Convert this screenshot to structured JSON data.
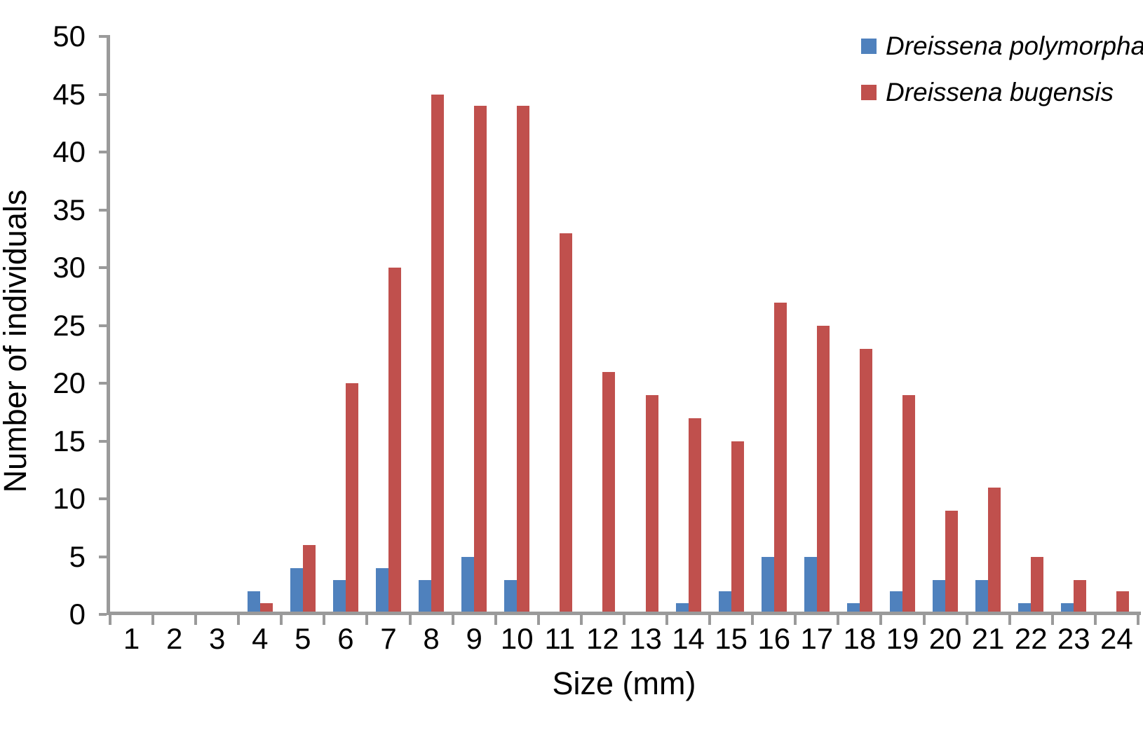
{
  "chart_data": {
    "type": "bar",
    "xlabel": "Size (mm)",
    "ylabel": "Number of individuals",
    "categories": [
      1,
      2,
      3,
      4,
      5,
      6,
      7,
      8,
      9,
      10,
      11,
      12,
      13,
      14,
      15,
      16,
      17,
      18,
      19,
      20,
      21,
      22,
      23,
      24
    ],
    "series": [
      {
        "key": "polymorpha",
        "name": "Dreissena polymorpha",
        "color": "#4F81BD",
        "values": [
          0,
          0,
          0,
          2,
          4,
          3,
          4,
          3,
          5,
          3,
          0,
          0,
          0,
          1,
          2,
          5,
          5,
          1,
          2,
          3,
          3,
          1,
          1,
          0
        ]
      },
      {
        "key": "bugensis",
        "name": "Dreissena bugensis",
        "color": "#C0504D",
        "values": [
          0,
          0,
          0,
          1,
          6,
          20,
          30,
          45,
          44,
          44,
          33,
          21,
          19,
          17,
          15,
          27,
          25,
          23,
          19,
          9,
          11,
          5,
          3,
          2
        ]
      }
    ],
    "ylim": [
      0,
      50
    ],
    "yticks": [
      0,
      5,
      10,
      15,
      20,
      25,
      30,
      35,
      40,
      45,
      50
    ],
    "grid": false,
    "legend_position": "top-right",
    "axis_color": "#9a9a9a"
  }
}
